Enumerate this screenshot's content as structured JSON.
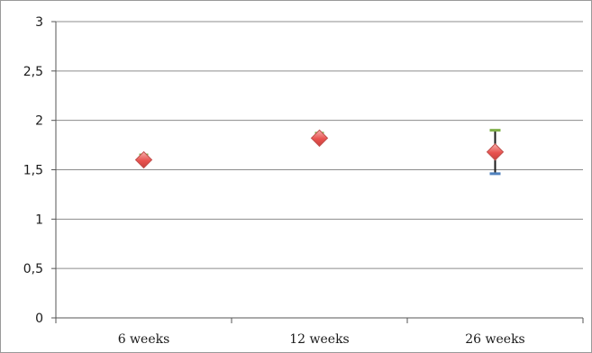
{
  "chart_data": {
    "type": "scatter",
    "categories": [
      "6 weeks",
      "12 weeks",
      "26 weeks"
    ],
    "series": [
      {
        "values": [
          1.6,
          1.82,
          1.68
        ],
        "error_upper": [
          1.6,
          1.82,
          1.9
        ],
        "error_lower": [
          1.6,
          1.82,
          1.46
        ]
      }
    ],
    "y_ticks": [
      "0",
      "0,5",
      "1",
      "1,5",
      "2",
      "2,5",
      "3"
    ],
    "ylim": [
      0,
      3
    ],
    "grid": true,
    "title": "",
    "xlabel": "",
    "ylabel": "",
    "colors": {
      "marker_fill": "#e8524f",
      "marker_highlight": "#f4a6a2",
      "marker_edge": "#c0504d",
      "error_upper_cap": "#7fb04a",
      "error_lower_cap": "#4f81bd",
      "error_line": "#1a1a1a",
      "grid": "#8c8c8c",
      "axis": "#555555"
    }
  }
}
